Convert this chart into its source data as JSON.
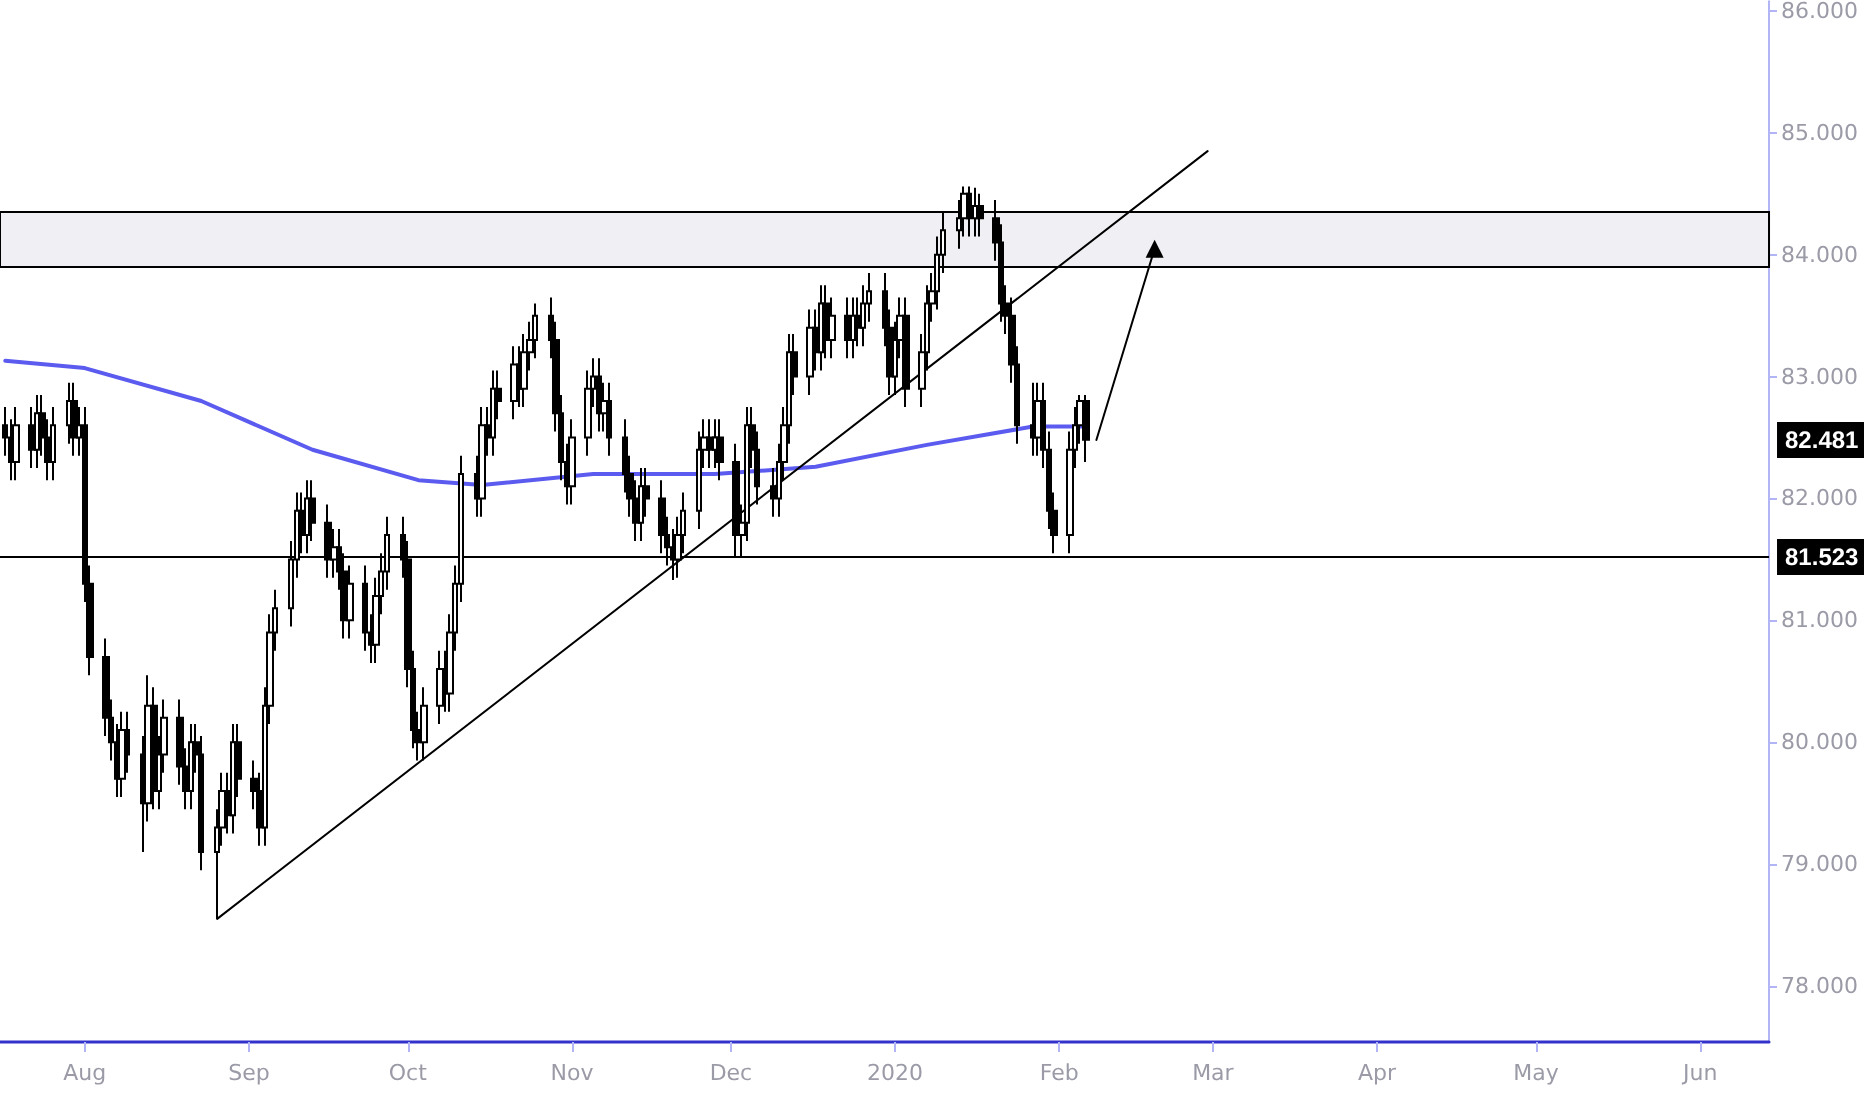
{
  "chart_data": {
    "type": "candlestick",
    "x": [
      "2019-07-17",
      "2019-07-18",
      "2019-07-19",
      "2019-07-22",
      "2019-07-23",
      "2019-07-24",
      "2019-07-25",
      "2019-07-26",
      "2019-07-29",
      "2019-07-30",
      "2019-07-31",
      "2019-08-01",
      "2019-08-02",
      "2019-08-05",
      "2019-08-06",
      "2019-08-07",
      "2019-08-08",
      "2019-08-09",
      "2019-08-12",
      "2019-08-13",
      "2019-08-14",
      "2019-08-15",
      "2019-08-16",
      "2019-08-19",
      "2019-08-20",
      "2019-08-21",
      "2019-08-22",
      "2019-08-23",
      "2019-08-26",
      "2019-08-27",
      "2019-08-28",
      "2019-08-29",
      "2019-08-30",
      "2019-09-02",
      "2019-09-03",
      "2019-09-04",
      "2019-09-05",
      "2019-09-06",
      "2019-09-09",
      "2019-09-10",
      "2019-09-11",
      "2019-09-12",
      "2019-09-13",
      "2019-09-16",
      "2019-09-17",
      "2019-09-18",
      "2019-09-19",
      "2019-09-20",
      "2019-09-23",
      "2019-09-24",
      "2019-09-25",
      "2019-09-26",
      "2019-09-27",
      "2019-09-30",
      "2019-10-01",
      "2019-10-02",
      "2019-10-03",
      "2019-10-04",
      "2019-10-07",
      "2019-10-08",
      "2019-10-09",
      "2019-10-10",
      "2019-10-11",
      "2019-10-14",
      "2019-10-15",
      "2019-10-16",
      "2019-10-17",
      "2019-10-18",
      "2019-10-21",
      "2019-10-22",
      "2019-10-23",
      "2019-10-24",
      "2019-10-25",
      "2019-10-28",
      "2019-10-29",
      "2019-10-30",
      "2019-10-31",
      "2019-11-01",
      "2019-11-04",
      "2019-11-05",
      "2019-11-06",
      "2019-11-07",
      "2019-11-08",
      "2019-11-11",
      "2019-11-12",
      "2019-11-13",
      "2019-11-14",
      "2019-11-15",
      "2019-11-18",
      "2019-11-19",
      "2019-11-20",
      "2019-11-21",
      "2019-11-22",
      "2019-11-25",
      "2019-11-26",
      "2019-11-27",
      "2019-11-28",
      "2019-11-29",
      "2019-12-02",
      "2019-12-03",
      "2019-12-04",
      "2019-12-05",
      "2019-12-06",
      "2019-12-09",
      "2019-12-10",
      "2019-12-11",
      "2019-12-12",
      "2019-12-13",
      "2019-12-16",
      "2019-12-17",
      "2019-12-18",
      "2019-12-19",
      "2019-12-20",
      "2019-12-23",
      "2019-12-24",
      "2019-12-25",
      "2019-12-26",
      "2019-12-27",
      "2019-12-30",
      "2019-12-31",
      "2020-01-01",
      "2020-01-02",
      "2020-01-03",
      "2020-01-06",
      "2020-01-07",
      "2020-01-08",
      "2020-01-09",
      "2020-01-10",
      "2020-01-13",
      "2020-01-14",
      "2020-01-15",
      "2020-01-16",
      "2020-01-17",
      "2020-01-20",
      "2020-01-21",
      "2020-01-22",
      "2020-01-23",
      "2020-01-24",
      "2020-01-27",
      "2020-01-28",
      "2020-01-29",
      "2020-01-30",
      "2020-01-31",
      "2020-02-03",
      "2020-02-04",
      "2020-02-05",
      "2020-02-06"
    ],
    "ohlc": [
      [
        82.6,
        82.75,
        82.35,
        82.5
      ],
      [
        82.5,
        82.65,
        82.15,
        82.3
      ],
      [
        82.3,
        82.75,
        82.15,
        82.6
      ],
      [
        82.6,
        82.75,
        82.25,
        82.4
      ],
      [
        82.4,
        82.85,
        82.25,
        82.7
      ],
      [
        82.7,
        82.85,
        82.35,
        82.5
      ],
      [
        82.5,
        82.65,
        82.15,
        82.3
      ],
      [
        82.3,
        82.75,
        82.15,
        82.6
      ],
      [
        82.6,
        82.95,
        82.45,
        82.8
      ],
      [
        82.8,
        82.95,
        82.35,
        82.5
      ],
      [
        82.5,
        82.75,
        82.35,
        82.6
      ],
      [
        82.6,
        82.75,
        81.15,
        81.3
      ],
      [
        81.3,
        81.45,
        80.55,
        80.7
      ],
      [
        80.7,
        80.85,
        80.05,
        80.2
      ],
      [
        80.2,
        80.35,
        79.85,
        80.0
      ],
      [
        80.0,
        80.15,
        79.55,
        79.7
      ],
      [
        79.7,
        80.25,
        79.55,
        80.1
      ],
      [
        80.1,
        80.25,
        79.75,
        79.9
      ],
      [
        79.9,
        80.05,
        79.1,
        79.5
      ],
      [
        79.5,
        80.55,
        79.35,
        80.3
      ],
      [
        80.3,
        80.45,
        79.45,
        79.6
      ],
      [
        79.6,
        80.05,
        79.45,
        79.9
      ],
      [
        79.9,
        80.35,
        79.75,
        80.2
      ],
      [
        80.2,
        80.35,
        79.65,
        79.8
      ],
      [
        79.8,
        79.95,
        79.45,
        79.6
      ],
      [
        79.6,
        80.15,
        79.45,
        80.0
      ],
      [
        80.0,
        80.15,
        79.75,
        79.9
      ],
      [
        79.9,
        80.05,
        78.95,
        79.1
      ],
      [
        79.1,
        79.45,
        78.55,
        79.3
      ],
      [
        79.3,
        79.75,
        79.15,
        79.6
      ],
      [
        79.6,
        79.75,
        79.25,
        79.4
      ],
      [
        79.4,
        80.15,
        79.25,
        80.0
      ],
      [
        80.0,
        80.15,
        79.55,
        79.7
      ],
      [
        79.7,
        79.85,
        79.45,
        79.6
      ],
      [
        79.6,
        79.75,
        79.15,
        79.3
      ],
      [
        79.3,
        80.45,
        79.15,
        80.3
      ],
      [
        80.3,
        81.05,
        80.15,
        80.9
      ],
      [
        80.9,
        81.25,
        80.75,
        81.1
      ],
      [
        81.1,
        81.65,
        80.95,
        81.5
      ],
      [
        81.5,
        82.05,
        81.35,
        81.9
      ],
      [
        81.9,
        82.05,
        81.55,
        81.7
      ],
      [
        81.7,
        82.15,
        81.55,
        82.0
      ],
      [
        82.0,
        82.15,
        81.65,
        81.8
      ],
      [
        81.8,
        81.95,
        81.35,
        81.5
      ],
      [
        81.5,
        81.75,
        81.35,
        81.6
      ],
      [
        81.6,
        81.75,
        81.25,
        81.4
      ],
      [
        81.4,
        81.55,
        80.85,
        81.0
      ],
      [
        81.0,
        81.45,
        80.85,
        81.3
      ],
      [
        81.3,
        81.45,
        80.75,
        80.9
      ],
      [
        80.9,
        81.05,
        80.65,
        80.8
      ],
      [
        80.8,
        81.35,
        80.65,
        81.2
      ],
      [
        81.2,
        81.55,
        81.05,
        81.4
      ],
      [
        81.4,
        81.85,
        81.25,
        81.7
      ],
      [
        81.7,
        81.85,
        81.35,
        81.5
      ],
      [
        81.5,
        81.65,
        80.45,
        80.6
      ],
      [
        80.6,
        80.75,
        79.95,
        80.1
      ],
      [
        80.1,
        80.25,
        79.85,
        80.0
      ],
      [
        80.0,
        80.45,
        79.85,
        80.3
      ],
      [
        80.3,
        80.75,
        80.15,
        80.6
      ],
      [
        80.6,
        80.75,
        80.25,
        80.4
      ],
      [
        80.4,
        81.05,
        80.25,
        80.9
      ],
      [
        80.9,
        81.45,
        80.75,
        81.3
      ],
      [
        81.3,
        82.35,
        81.15,
        82.2
      ],
      [
        82.2,
        82.35,
        81.85,
        82.0
      ],
      [
        82.0,
        82.75,
        81.85,
        82.6
      ],
      [
        82.6,
        82.75,
        82.35,
        82.5
      ],
      [
        82.5,
        83.05,
        82.35,
        82.9
      ],
      [
        82.9,
        83.05,
        82.65,
        82.8
      ],
      [
        82.8,
        83.25,
        82.65,
        83.1
      ],
      [
        83.1,
        83.25,
        82.75,
        82.9
      ],
      [
        82.9,
        83.35,
        82.75,
        83.2
      ],
      [
        83.2,
        83.45,
        83.05,
        83.3
      ],
      [
        83.3,
        83.6,
        83.15,
        83.5
      ],
      [
        83.5,
        83.65,
        83.15,
        83.3
      ],
      [
        83.3,
        83.45,
        82.55,
        82.7
      ],
      [
        82.7,
        82.85,
        82.15,
        82.3
      ],
      [
        82.3,
        82.45,
        81.95,
        82.1
      ],
      [
        82.1,
        82.65,
        81.95,
        82.5
      ],
      [
        82.5,
        83.05,
        82.35,
        82.9
      ],
      [
        82.9,
        83.15,
        82.75,
        83.0
      ],
      [
        83.0,
        83.15,
        82.55,
        82.7
      ],
      [
        82.7,
        82.95,
        82.55,
        82.8
      ],
      [
        82.8,
        82.95,
        82.35,
        82.5
      ],
      [
        82.5,
        82.65,
        82.05,
        82.2
      ],
      [
        82.2,
        82.35,
        81.85,
        82.0
      ],
      [
        82.0,
        82.15,
        81.65,
        81.8
      ],
      [
        81.8,
        82.25,
        81.65,
        82.1
      ],
      [
        82.1,
        82.25,
        81.85,
        82.0
      ],
      [
        82.0,
        82.15,
        81.55,
        81.7
      ],
      [
        81.7,
        81.85,
        81.45,
        81.6
      ],
      [
        81.6,
        81.75,
        81.33,
        81.5
      ],
      [
        81.5,
        81.85,
        81.35,
        81.7
      ],
      [
        81.7,
        82.05,
        81.55,
        81.9
      ],
      [
        81.9,
        82.55,
        81.75,
        82.4
      ],
      [
        82.4,
        82.65,
        82.25,
        82.5
      ],
      [
        82.5,
        82.65,
        82.25,
        82.4
      ],
      [
        82.4,
        82.65,
        82.25,
        82.5
      ],
      [
        82.5,
        82.65,
        82.15,
        82.3
      ],
      [
        82.3,
        82.45,
        81.52,
        81.7
      ],
      [
        81.7,
        81.95,
        81.52,
        81.8
      ],
      [
        81.8,
        82.75,
        81.65,
        82.6
      ],
      [
        82.6,
        82.75,
        82.25,
        82.4
      ],
      [
        82.4,
        82.55,
        81.95,
        82.1
      ],
      [
        82.1,
        82.25,
        81.85,
        82.0
      ],
      [
        82.0,
        82.45,
        81.85,
        82.3
      ],
      [
        82.3,
        82.75,
        82.15,
        82.6
      ],
      [
        82.6,
        83.35,
        82.45,
        83.2
      ],
      [
        83.2,
        83.35,
        82.85,
        83.0
      ],
      [
        83.0,
        83.55,
        82.85,
        83.4
      ],
      [
        83.4,
        83.55,
        83.05,
        83.2
      ],
      [
        83.2,
        83.75,
        83.05,
        83.6
      ],
      [
        83.6,
        83.75,
        83.15,
        83.3
      ],
      [
        83.3,
        83.65,
        83.15,
        83.5
      ],
      [
        83.5,
        83.65,
        83.15,
        83.3
      ],
      [
        83.3,
        83.65,
        83.15,
        83.5
      ],
      [
        83.5,
        83.65,
        83.25,
        83.4
      ],
      [
        83.4,
        83.75,
        83.25,
        83.6
      ],
      [
        83.6,
        83.85,
        83.45,
        83.7
      ],
      [
        83.7,
        83.85,
        83.25,
        83.4
      ],
      [
        83.4,
        83.55,
        82.85,
        83.0
      ],
      [
        83.0,
        83.45,
        82.85,
        83.3
      ],
      [
        83.3,
        83.65,
        83.15,
        83.5
      ],
      [
        83.5,
        83.65,
        82.75,
        82.9
      ],
      [
        82.9,
        83.35,
        82.75,
        83.2
      ],
      [
        83.2,
        83.75,
        83.05,
        83.6
      ],
      [
        83.6,
        83.85,
        83.45,
        83.7
      ],
      [
        83.7,
        84.15,
        83.55,
        84.0
      ],
      [
        84.0,
        84.35,
        83.85,
        84.2
      ],
      [
        84.2,
        84.45,
        84.05,
        84.3
      ],
      [
        84.3,
        84.56,
        84.15,
        84.5
      ],
      [
        84.5,
        84.56,
        84.15,
        84.3
      ],
      [
        84.3,
        84.55,
        84.15,
        84.4
      ],
      [
        84.4,
        84.5,
        84.15,
        84.3
      ],
      [
        84.3,
        84.45,
        83.95,
        84.1
      ],
      [
        84.1,
        84.25,
        83.45,
        83.6
      ],
      [
        83.6,
        83.75,
        83.35,
        83.5
      ],
      [
        83.5,
        83.65,
        82.95,
        83.1
      ],
      [
        83.1,
        83.25,
        82.45,
        82.6
      ],
      [
        82.6,
        82.95,
        82.35,
        82.5
      ],
      [
        82.5,
        82.95,
        82.35,
        82.8
      ],
      [
        82.8,
        82.95,
        82.25,
        82.4
      ],
      [
        82.4,
        82.55,
        81.75,
        81.9
      ],
      [
        81.9,
        82.05,
        81.55,
        81.7
      ],
      [
        81.7,
        82.55,
        81.55,
        82.4
      ],
      [
        82.4,
        82.75,
        82.25,
        82.6
      ],
      [
        82.6,
        82.85,
        82.45,
        82.8
      ],
      [
        82.8,
        82.85,
        82.3,
        82.481
      ]
    ],
    "series": [
      {
        "type": "line",
        "color": "#5b5bf0",
        "x": [
          "2019-07-17",
          "2019-08-01",
          "2019-08-23",
          "2019-09-13",
          "2019-10-03",
          "2019-10-15",
          "2019-11-05",
          "2019-11-28",
          "2019-12-17",
          "2020-01-07",
          "2020-01-27",
          "2020-02-06"
        ],
        "values": [
          83.13,
          83.07,
          82.8,
          82.4,
          82.15,
          82.11,
          82.2,
          82.2,
          82.26,
          82.44,
          82.59,
          82.59
        ]
      },
      {
        "type": "line",
        "color": "#000000",
        "x": [
          "2019-08-26",
          "2020-02-29"
        ],
        "values": [
          78.55,
          84.85
        ]
      },
      {
        "type": "line",
        "color": "#000000",
        "marker": "triangle",
        "x": [
          "2020-02-08",
          "2020-02-19"
        ],
        "values": [
          82.48,
          84.05
        ]
      }
    ],
    "ref_lines": [
      {
        "axis": "y",
        "value": 81.523,
        "label": "81.523",
        "color": "#000000"
      }
    ],
    "bands": [
      {
        "axis": "y",
        "from": 83.9,
        "to": 84.35,
        "color": "#f0f0f4"
      }
    ],
    "annotations": [
      "82.481"
    ],
    "xlim": [
      "2019-07-16",
      "2020-06-14"
    ],
    "xticks": [
      {
        "value": "2019-08-01",
        "label": "Aug"
      },
      {
        "value": "2019-09-01",
        "label": "Sep"
      },
      {
        "value": "2019-10-01",
        "label": "Oct"
      },
      {
        "value": "2019-11-01",
        "label": "Nov"
      },
      {
        "value": "2019-12-01",
        "label": "Dec"
      },
      {
        "value": "2020-01-01",
        "label": "2020"
      },
      {
        "value": "2020-02-01",
        "label": "Feb"
      },
      {
        "value": "2020-03-01",
        "label": "Mar"
      },
      {
        "value": "2020-04-01",
        "label": "Apr"
      },
      {
        "value": "2020-05-01",
        "label": "May"
      },
      {
        "value": "2020-06-01",
        "label": "Jun"
      }
    ],
    "ylim": [
      77.54,
      86.08
    ],
    "yticks": [
      {
        "value": 78,
        "label": "78.000"
      },
      {
        "value": 79,
        "label": "79.000"
      },
      {
        "value": 80,
        "label": "80.000"
      },
      {
        "value": 81,
        "label": "81.000"
      },
      {
        "value": 82,
        "label": "82.000"
      },
      {
        "value": 83,
        "label": "83.000"
      },
      {
        "value": 84,
        "label": "84.000"
      },
      {
        "value": 85,
        "label": "85.000"
      },
      {
        "value": 86,
        "label": "86.000"
      }
    ],
    "grid": false
  }
}
